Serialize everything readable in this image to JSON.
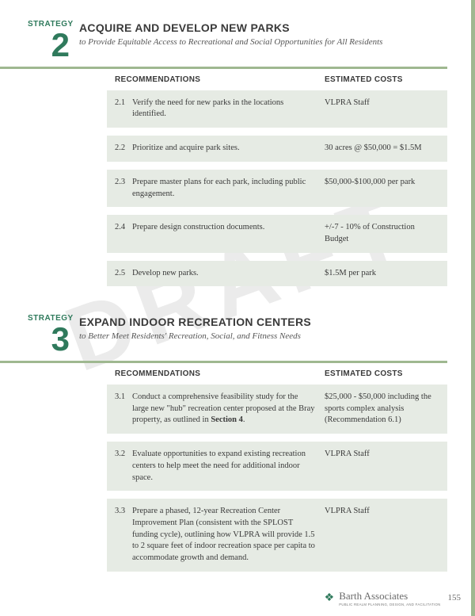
{
  "watermark": "DRAFT",
  "page_number": "155",
  "footer": {
    "brand": "Barth Associates",
    "tagline": "PUBLIC REALM PLANNING, DESIGN, AND FACILITATION"
  },
  "columns": {
    "recommendations": "RECOMMENDATIONS",
    "costs": "ESTIMATED COSTS"
  },
  "strategies": [
    {
      "label": "STRATEGY",
      "number": "2",
      "title": "ACQUIRE AND DEVELOP NEW PARKS",
      "subtitle": "to Provide Equitable Access to Recreational and Social Opportunities for All Residents",
      "rows": [
        {
          "num": "2.1",
          "text": "Verify the need for new parks in the locations identified.",
          "cost": "VLPRA Staff"
        },
        {
          "num": "2.2",
          "text": "Prioritize and acquire park sites.",
          "cost": "30 acres @ $50,000 = $1.5M"
        },
        {
          "num": "2.3",
          "text": "Prepare master plans for each park, including public engagement.",
          "cost": "$50,000-$100,000 per park"
        },
        {
          "num": "2.4",
          "text": "Prepare design construction documents.",
          "cost": "+/-7 - 10% of Construction Budget"
        },
        {
          "num": "2.5",
          "text": "Develop new parks.",
          "cost": "$1.5M per park"
        }
      ]
    },
    {
      "label": "STRATEGY",
      "number": "3",
      "title": "EXPAND INDOOR RECREATION CENTERS",
      "subtitle": "to Better Meet Residents' Recreation, Social, and Fitness Needs",
      "rows": [
        {
          "num": "3.1",
          "text": "Conduct a comprehensive feasibility study for the large new \"hub\" recreation center proposed at the Bray property, as outlined in <b>Section 4</b>.",
          "cost": "$25,000 - $50,000 including the sports complex analysis (Recommendation 6.1)"
        },
        {
          "num": "3.2",
          "text": "Evaluate opportunities to expand existing recreation centers to help meet the need for additional indoor space.",
          "cost": "VLPRA Staff"
        },
        {
          "num": "3.3",
          "text": "Prepare a phased, 12-year Recreation Center Improvement Plan (consistent with the SPLOST funding cycle), outlining how VLPRA will provide 1.5 to 2 square feet of indoor recreation space per capita to accommodate growth and demand.",
          "cost": "VLPRA Staff"
        }
      ]
    }
  ]
}
